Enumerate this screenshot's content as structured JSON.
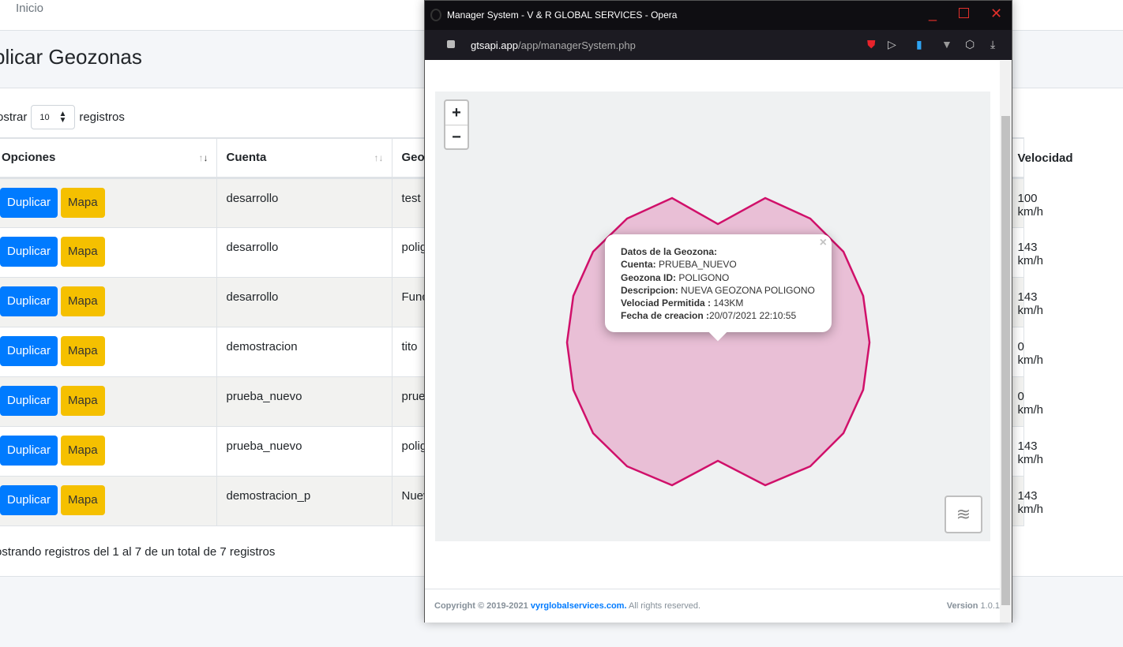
{
  "nav": {
    "home": "Inicio"
  },
  "page": {
    "title": "plicar Geozonas"
  },
  "length": {
    "prefix": "ostrar",
    "value": "10",
    "suffix": "registros"
  },
  "table": {
    "headers": [
      "Opciones",
      "Cuenta",
      "Geo",
      "Velocidad"
    ],
    "rows": [
      {
        "cuenta": "desarrollo",
        "geo": "test",
        "vel": "100 km/h"
      },
      {
        "cuenta": "desarrollo",
        "geo": "polig",
        "vel": "143 km/h"
      },
      {
        "cuenta": "desarrollo",
        "geo": "Func",
        "vel": "143 km/h"
      },
      {
        "cuenta": "demostracion",
        "geo": "tito",
        "vel": "0 km/h"
      },
      {
        "cuenta": "prueba_nuevo",
        "geo": "prue",
        "vel": "0 km/h"
      },
      {
        "cuenta": "prueba_nuevo",
        "geo": "polig",
        "vel": "143 km/h"
      },
      {
        "cuenta": "demostracion_p",
        "geo": "Nuev",
        "vel": "143 km/h"
      }
    ],
    "dup": "Duplicar",
    "map": "Mapa"
  },
  "info": "ostrando registros del 1 al 7 de un total de 7 registros",
  "window": {
    "title": "Manager System - V & R GLOBAL SERVICES - Opera",
    "host": "gtsapi.app",
    "path": "/app/managerSystem.php",
    "zoom_in": "+",
    "zoom_out": "−",
    "popup": {
      "heading": "Datos de la Geozona:",
      "lines": [
        [
          "Cuenta:",
          " PRUEBA_NUEVO"
        ],
        [
          "Geozona ID:",
          " POLIGONO"
        ],
        [
          "Descripcion:",
          " NUEVA GEOZONA POLIGONO"
        ],
        [
          "Velociad Permitida :",
          " 143KM"
        ],
        [
          "Fecha de creacion :",
          "20/07/2021 22:10:55"
        ]
      ],
      "close": "×"
    },
    "polygon": {
      "stroke": "#d0106a",
      "fill": "#e9bfd6"
    },
    "footer": {
      "copy": "Copyright © 2019-2021 ",
      "link": "vyrglobalservices.com.",
      "rest": " All rights reserved.",
      "version_label": "Version",
      "version": "1.0.1"
    }
  }
}
